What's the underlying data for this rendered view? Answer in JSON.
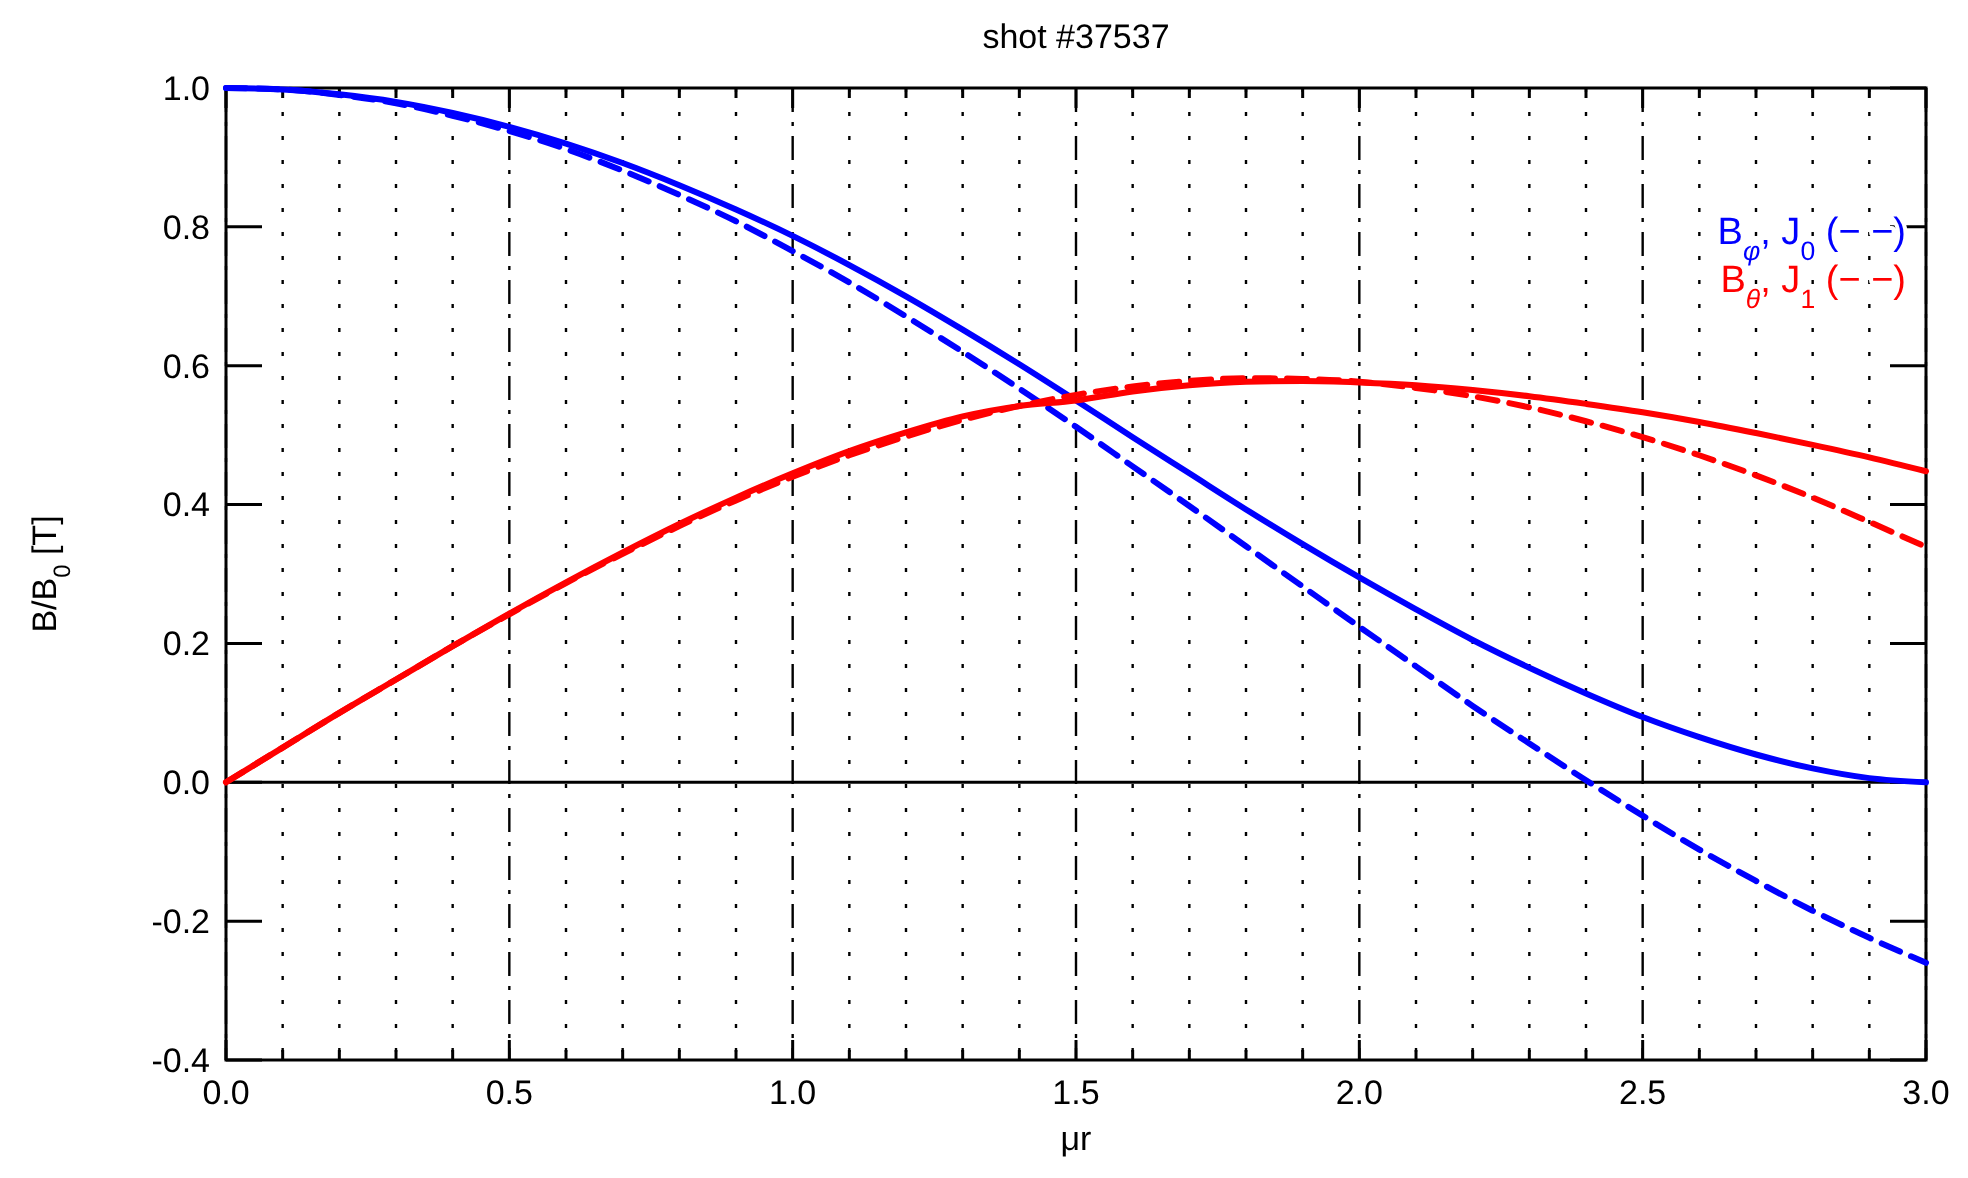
{
  "chart_data": {
    "type": "line",
    "title": "shot #37537",
    "xlabel": "μr",
    "ylabel": "B/B$_{0}$ [T]",
    "x": [
      0,
      0.1,
      0.2,
      0.3,
      0.4,
      0.5,
      0.6,
      0.7,
      0.8,
      0.9,
      1.0,
      1.1,
      1.2,
      1.3,
      1.4,
      1.5,
      1.6,
      1.7,
      1.8,
      1.9,
      2.0,
      2.1,
      2.2,
      2.3,
      2.4,
      2.5,
      2.6,
      2.7,
      2.8,
      2.9,
      3.0
    ],
    "series": [
      {
        "name": "B$_{φ}$, J$_{0}$ (− −)",
        "color": "#0000ff",
        "line_style": "solid",
        "values": [
          1,
          0.998,
          0.991,
          0.98,
          0.964,
          0.944,
          0.92,
          0.892,
          0.86,
          0.825,
          0.787,
          0.745,
          0.7,
          0.652,
          0.602,
          0.55,
          0.497,
          0.445,
          0.393,
          0.343,
          0.295,
          0.249,
          0.205,
          0.165,
          0.128,
          0.094,
          0.065,
          0.04,
          0.02,
          0.006,
          0
        ]
      },
      {
        "color": "#0000ff",
        "line_style": "dashed",
        "values": [
          1,
          0.998,
          0.99,
          0.978,
          0.96,
          0.938,
          0.912,
          0.881,
          0.846,
          0.808,
          0.765,
          0.72,
          0.671,
          0.62,
          0.567,
          0.512,
          0.455,
          0.398,
          0.34,
          0.282,
          0.224,
          0.167,
          0.11,
          0.056,
          0.003,
          -0.048,
          -0.097,
          -0.142,
          -0.185,
          -0.224,
          -0.26
        ]
      },
      {
        "name": "B$_{θ}$, J$_{1}$ (− −)",
        "color": "#ff0000",
        "line_style": "solid",
        "values": [
          0,
          0.05,
          0.1,
          0.148,
          0.196,
          0.243,
          0.288,
          0.331,
          0.372,
          0.41,
          0.445,
          0.477,
          0.504,
          0.527,
          0.542,
          0.55,
          0.563,
          0.572,
          0.577,
          0.578,
          0.576,
          0.572,
          0.565,
          0.556,
          0.545,
          0.533,
          0.519,
          0.503,
          0.486,
          0.468,
          0.448
        ]
      },
      {
        "color": "#ff0000",
        "line_style": "dashed",
        "values": [
          0,
          0.05,
          0.1,
          0.148,
          0.196,
          0.242,
          0.287,
          0.329,
          0.369,
          0.406,
          0.44,
          0.471,
          0.498,
          0.522,
          0.542,
          0.558,
          0.57,
          0.578,
          0.582,
          0.581,
          0.577,
          0.568,
          0.556,
          0.54,
          0.52,
          0.497,
          0.471,
          0.442,
          0.41,
          0.375,
          0.339
        ]
      }
    ],
    "xlim": [
      0,
      3
    ],
    "ylim": [
      -0.4,
      1.0
    ],
    "xticks": [
      {
        "value": 0,
        "label": "0.0"
      },
      {
        "value": 0.1,
        "label": null
      },
      {
        "value": 0.2,
        "label": null
      },
      {
        "value": 0.3,
        "label": null
      },
      {
        "value": 0.4,
        "label": null
      },
      0.5,
      {
        "value": 0.6,
        "label": null
      },
      {
        "value": 0.7,
        "label": null
      },
      {
        "value": 0.8,
        "label": null
      },
      {
        "value": 0.9,
        "label": null
      },
      {
        "value": 1,
        "label": "1.0"
      },
      {
        "value": 1.1,
        "label": null
      },
      {
        "value": 1.2,
        "label": null
      },
      {
        "value": 1.3,
        "label": null
      },
      {
        "value": 1.4,
        "label": null
      },
      1.5,
      {
        "value": 1.6,
        "label": null
      },
      {
        "value": 1.7,
        "label": null
      },
      {
        "value": 1.8,
        "label": null
      },
      {
        "value": 1.9,
        "label": null
      },
      {
        "value": 2,
        "label": "2.0"
      },
      {
        "value": 2.1,
        "label": null
      },
      {
        "value": 2.2,
        "label": null
      },
      {
        "value": 2.3,
        "label": null
      },
      {
        "value": 2.4,
        "label": null
      },
      2.5,
      {
        "value": 2.6,
        "label": null
      },
      {
        "value": 2.7,
        "label": null
      },
      {
        "value": 2.8,
        "label": null
      },
      {
        "value": 2.9,
        "label": null
      },
      {
        "value": 3,
        "label": "3.0"
      }
    ],
    "yticks": [
      -0.4,
      -0.2,
      {
        "value": 0,
        "label": "0.0"
      },
      0.2,
      0.4,
      0.6,
      0.8,
      {
        "value": 1,
        "label": "1.0"
      }
    ],
    "grid": "x",
    "legend": "top right",
    "marker": "none",
    "ref_lines": [
      {
        "axis": "y",
        "value": 0,
        "color": "#000000",
        "line_style": "solid"
      }
    ]
  }
}
